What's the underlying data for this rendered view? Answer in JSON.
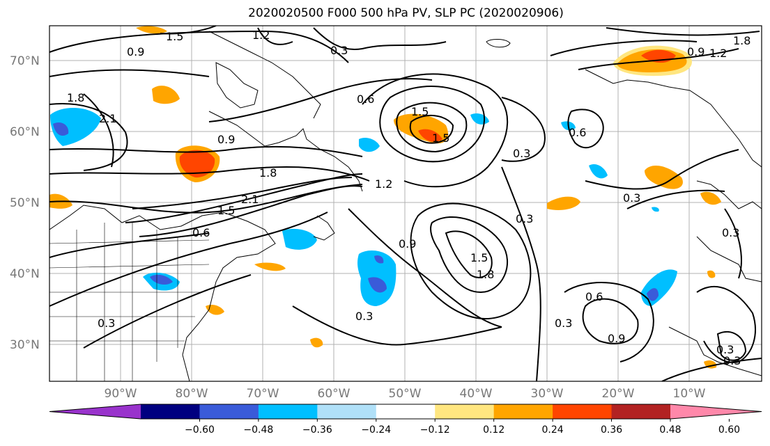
{
  "title": "2020020500 F000 500 hPa PV, SLP PC (2020020906)",
  "map": {
    "lat_labels": [
      "70°N",
      "60°N",
      "50°N",
      "40°N",
      "30°N"
    ],
    "lon_labels": [
      "90°W",
      "80°W",
      "70°W",
      "60°W",
      "50°W",
      "40°W",
      "30°W",
      "20°W",
      "10°W"
    ],
    "contour_labels": [
      "1.5",
      "1.2",
      "0.9",
      "0.3",
      "1.8",
      "0.6",
      "2.1",
      "1.8",
      "1.5",
      "0.9",
      "1.2",
      "1.5",
      "2.1",
      "1.5",
      "0.6",
      "0.9",
      "1.5",
      "1.8",
      "0.3",
      "0.6",
      "0.3",
      "0.3",
      "0.6",
      "0.3",
      "0.9",
      "0.3",
      "0.3",
      "0.9",
      "1.2",
      "1.8",
      "0.3",
      "0.3",
      "0.3"
    ]
  },
  "colorbar": {
    "colors": [
      "#9933cc",
      "#000080",
      "#3a5bd9",
      "#00bfff",
      "#b0e0f8",
      "#ffffff",
      "#ffe680",
      "#ffa500",
      "#ff4500",
      "#b22222",
      "#ff88aa"
    ],
    "ticks": [
      "−0.60",
      "−0.48",
      "−0.36",
      "−0.24",
      "−0.12",
      "0.12",
      "0.24",
      "0.36",
      "0.48",
      "0.60"
    ]
  }
}
